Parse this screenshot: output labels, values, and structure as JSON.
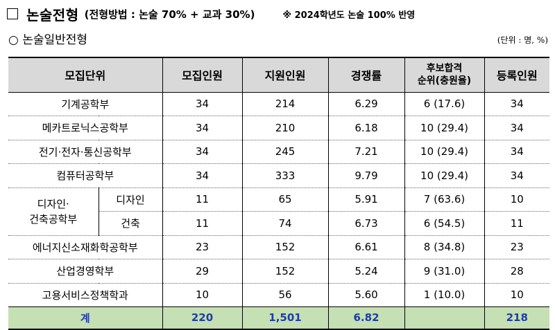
{
  "header": {
    "title": "논술전형",
    "subtitle": "(전형방법 : 논술 70% + 교과 30%)",
    "note": "※ 2024학년도 논술 100% 반영"
  },
  "section": {
    "title": "○ 논술일반전형",
    "unit": "(단위 : 명, %)"
  },
  "table": {
    "headers": {
      "unit": "모집단위",
      "quota": "모집인원",
      "applicants": "지원인원",
      "ratio": "경쟁률",
      "waitlist_line1": "후보합격",
      "waitlist_line2": "순위(충원율)",
      "enrolled": "등록인원"
    },
    "rows": [
      {
        "name": "기계공학부",
        "quota": "34",
        "applicants": "214",
        "ratio": "6.29",
        "waitlist": "6 (17.6)",
        "enrolled": "34"
      },
      {
        "name": "메카트로닉스공학부",
        "quota": "34",
        "applicants": "210",
        "ratio": "6.18",
        "waitlist": "10 (29.4)",
        "enrolled": "34"
      },
      {
        "name": "전기·전자·통신공학부",
        "quota": "34",
        "applicants": "245",
        "ratio": "7.21",
        "waitlist": "10 (29.4)",
        "enrolled": "34"
      },
      {
        "name": "컴퓨터공학부",
        "quota": "34",
        "applicants": "333",
        "ratio": "9.79",
        "waitlist": "10 (29.4)",
        "enrolled": "34"
      }
    ],
    "group": {
      "name_line1": "디자인·",
      "name_line2": "건축공학부",
      "subrows": [
        {
          "name": "디자인",
          "quota": "11",
          "applicants": "65",
          "ratio": "5.91",
          "waitlist": "7 (63.6)",
          "enrolled": "10"
        },
        {
          "name": "건축",
          "quota": "11",
          "applicants": "74",
          "ratio": "6.73",
          "waitlist": "6 (54.5)",
          "enrolled": "11"
        }
      ]
    },
    "rows2": [
      {
        "name": "에너지신소재화학공학부",
        "quota": "23",
        "applicants": "152",
        "ratio": "6.61",
        "waitlist": "8 (34.8)",
        "enrolled": "23"
      },
      {
        "name": "산업경영학부",
        "quota": "29",
        "applicants": "152",
        "ratio": "5.24",
        "waitlist": "9 (31.0)",
        "enrolled": "28"
      },
      {
        "name": "고용서비스정책학과",
        "quota": "10",
        "applicants": "56",
        "ratio": "5.60",
        "waitlist": "1 (10.0)",
        "enrolled": "10"
      }
    ],
    "total": {
      "label": "계",
      "quota": "220",
      "applicants": "1,501",
      "ratio": "6.82",
      "waitlist": "",
      "enrolled": "218"
    }
  }
}
